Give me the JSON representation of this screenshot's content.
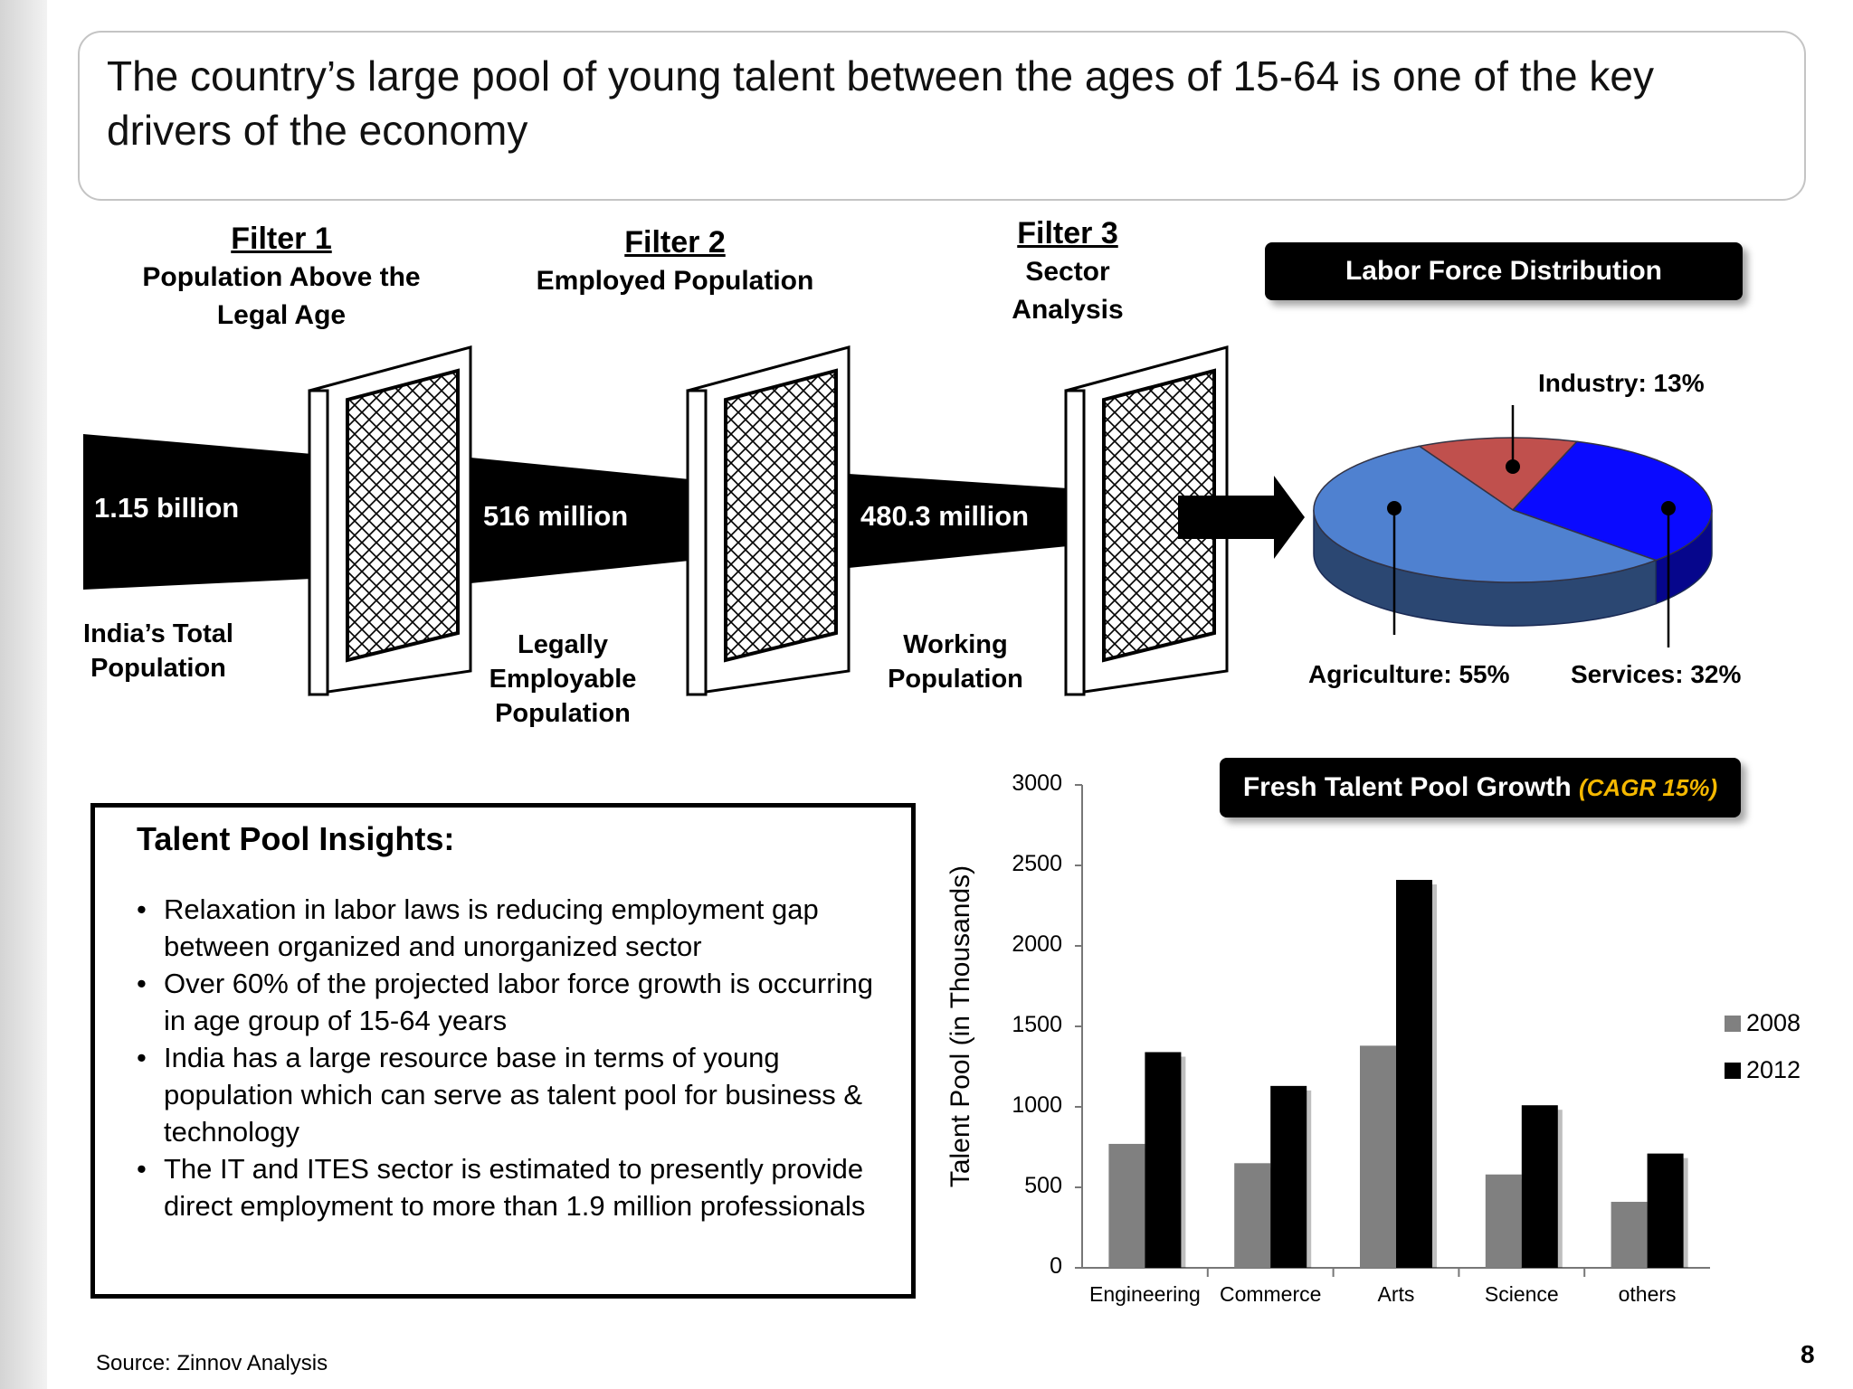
{
  "title": "The country’s large pool of young talent between the ages of 15-64 is one of the key drivers of the economy",
  "filters": [
    {
      "name": "Filter 1",
      "desc": "Population Above the Legal Age"
    },
    {
      "name": "Filter 2",
      "desc": "Employed Population"
    },
    {
      "name": "Filter 3",
      "desc": "Sector Analysis"
    }
  ],
  "funnel": {
    "values": [
      "1.15  billion",
      "516 million",
      "480.3 million"
    ],
    "labels": [
      "India’s Total Population",
      "Legally Employable Population",
      "Working Population"
    ]
  },
  "labor": {
    "title": "Labor Force Distribution",
    "slices": [
      {
        "label": "Agriculture: 55%",
        "value": 55,
        "color": "#4f81d0"
      },
      {
        "label": "Industry: 13%",
        "value": 13,
        "color": "#c0504d"
      },
      {
        "label": "Services: 32%",
        "value": 32,
        "color": "#0a0aff"
      }
    ]
  },
  "insights": {
    "heading": "Talent Pool Insights:",
    "bullets": [
      "Relaxation in labor laws is reducing employment gap between  organized and unorganized sector",
      "Over 60% of the projected labor force growth is occurring in age group of 15-64 years",
      "India has a large resource base in terms of young population which can serve as talent pool for business & technology",
      "The IT and ITES sector is estimated to presently provide direct employment to more than 1.9 million professionals"
    ]
  },
  "chart_data": {
    "type": "bar",
    "title": "Fresh Talent Pool Growth",
    "subtitle": "(CAGR 15%)",
    "ylabel": "Talent Pool (in Thousands)",
    "xlabel": "",
    "ylim": [
      0,
      3000
    ],
    "yticks": [
      "0",
      "500",
      "1000",
      "1500",
      "2000",
      "2500",
      "3000"
    ],
    "categories": [
      "Engineering",
      "Commerce",
      "Arts",
      "Science",
      "others"
    ],
    "series": [
      {
        "name": "2008",
        "values": [
          770,
          650,
          1380,
          580,
          410
        ],
        "color": "#808080"
      },
      {
        "name": "2012",
        "values": [
          1340,
          1130,
          2410,
          1010,
          710
        ],
        "color": "#000000"
      }
    ],
    "legend": "right",
    "grid": false
  },
  "footer": {
    "source": "Source: Zinnov Analysis",
    "page": "8"
  }
}
